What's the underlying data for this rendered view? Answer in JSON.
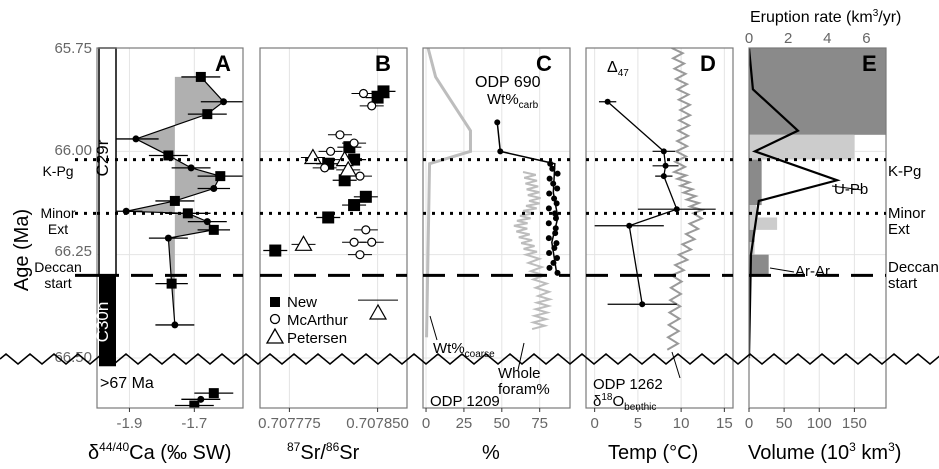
{
  "figure": {
    "y_axis_label": "Age (Ma)",
    "y_ticks": [
      "65.75",
      "66.00",
      "66.25",
      "66.50"
    ],
    "y_range": [
      65.75,
      66.5
    ],
    "events": [
      {
        "label": "K-Pg",
        "age": 66.02,
        "style": "dotted"
      },
      {
        "label": "Minor Ext",
        "age": 66.15,
        "style": "dotted"
      },
      {
        "label": "Deccan start",
        "age": 66.3,
        "style": "dashed"
      }
    ],
    "chrons": [
      {
        "label": "C29r",
        "top": 65.75,
        "bottom": 66.3,
        "fill": "#ffffff"
      },
      {
        "label": "C30n",
        "top": 66.3,
        "bottom": 66.52,
        "fill": "#000000"
      }
    ],
    "break_label": ">67 Ma",
    "colors": {
      "gray": "#b0b0b0",
      "light_gray": "#cccccc",
      "dark_gray": "#888888",
      "black": "#000000"
    }
  },
  "panels": {
    "A": {
      "letter": "A",
      "xlabel": "δ44/40Ca (‰ SW)",
      "xticks": [
        "-1.9",
        "-1.7"
      ]
    },
    "B": {
      "letter": "B",
      "xlabel": "87Sr/86Sr",
      "xticks": [
        "0.707775",
        "0.707850"
      ],
      "legend": [
        "New",
        "McArthur",
        "Petersen"
      ]
    },
    "C": {
      "letter": "C",
      "xlabel": "%",
      "xticks": [
        "0",
        "25",
        "50",
        "75"
      ],
      "site_top": "ODP 690",
      "site_bottom": "ODP 1209",
      "labels": {
        "wt_carb": "Wt%carb",
        "wt_coarse": "Wt%coarse",
        "whole_foram_1": "Whole",
        "whole_foram_2": "foram%"
      }
    },
    "D": {
      "letter": "D",
      "xlabel": "Temp (°C)",
      "xticks": [
        "0",
        "5",
        "10",
        "15"
      ],
      "labels": {
        "delta47": "Δ47",
        "site": "ODP 1262",
        "benthic": "δ18Obenthic"
      }
    },
    "E": {
      "letter": "E",
      "xlabel": "Volume (103 km3)",
      "xticks": [
        "0",
        "50",
        "100",
        "150"
      ],
      "top_label": "Eruption rate (km3/yr)",
      "top_ticks": [
        "0",
        "2",
        "4",
        "6"
      ],
      "labels": {
        "upb": "U-Pb",
        "arar": "Ar-Ar"
      }
    }
  },
  "chart_data": [
    {
      "type": "scatter",
      "panel": "A",
      "xlabel": "δ44/40Ca (‰ SW)",
      "ylabel": "Age (Ma)",
      "xlim": [
        -2.0,
        -1.55
      ],
      "series": [
        {
          "name": "",
          "points": [
            {
              "x": -1.68,
              "y": 65.82,
              "err": 0.06
            },
            {
              "x": -1.61,
              "y": 65.88,
              "err": 0.07
            },
            {
              "x": -1.66,
              "y": 65.91,
              "err": 0.06
            },
            {
              "x": -1.88,
              "y": 65.97,
              "err": 0.07
            },
            {
              "x": -1.78,
              "y": 66.01,
              "err": 0.06
            },
            {
              "x": -1.71,
              "y": 66.04,
              "err": 0.06
            },
            {
              "x": -1.62,
              "y": 66.06,
              "err": 0.07
            },
            {
              "x": -1.64,
              "y": 66.09,
              "err": 0.05
            },
            {
              "x": -1.76,
              "y": 66.12,
              "err": 0.06
            },
            {
              "x": -1.91,
              "y": 66.145,
              "err": 0.05
            },
            {
              "x": -1.72,
              "y": 66.15,
              "err": 0.07
            },
            {
              "x": -1.66,
              "y": 66.17,
              "err": 0.06
            },
            {
              "x": -1.64,
              "y": 66.19,
              "err": 0.05
            },
            {
              "x": -1.78,
              "y": 66.21,
              "err": 0.06
            },
            {
              "x": -1.77,
              "y": 66.32,
              "err": 0.05
            },
            {
              "x": -1.76,
              "y": 66.42,
              "err": 0.06
            },
            {
              "x": -1.64,
              "y": 66.585,
              "err": 0.06
            },
            {
              "x": -1.68,
              "y": 66.6,
              "err": 0.06
            },
            {
              "x": -1.7,
              "y": 66.615,
              "err": 0.06
            }
          ]
        }
      ]
    },
    {
      "type": "scatter",
      "panel": "B",
      "xlabel": "87Sr/86Sr",
      "ylabel": "Age (Ma)",
      "xlim": [
        0.70775,
        0.707875
      ],
      "series": [
        {
          "name": "New",
          "points": [
            {
              "x": 0.707855,
              "y": 65.855
            },
            {
              "x": 0.70785,
              "y": 65.87
            },
            {
              "x": 0.707826,
              "y": 65.99
            },
            {
              "x": 0.70783,
              "y": 66.02
            },
            {
              "x": 0.707808,
              "y": 66.03
            },
            {
              "x": 0.707822,
              "y": 66.07
            },
            {
              "x": 0.70784,
              "y": 66.11
            },
            {
              "x": 0.70783,
              "y": 66.13
            },
            {
              "x": 0.707808,
              "y": 66.16
            },
            {
              "x": 0.707763,
              "y": 66.24
            }
          ]
        },
        {
          "name": "McArthur",
          "points": [
            {
              "x": 0.707838,
              "y": 65.86
            },
            {
              "x": 0.707845,
              "y": 65.89
            },
            {
              "x": 0.707818,
              "y": 65.96
            },
            {
              "x": 0.70783,
              "y": 65.98
            },
            {
              "x": 0.70781,
              "y": 66.0
            },
            {
              "x": 0.707805,
              "y": 66.04
            },
            {
              "x": 0.707835,
              "y": 66.06
            },
            {
              "x": 0.70784,
              "y": 66.19
            },
            {
              "x": 0.70783,
              "y": 66.22
            },
            {
              "x": 0.707845,
              "y": 66.22
            },
            {
              "x": 0.707835,
              "y": 66.25
            }
          ]
        },
        {
          "name": "Petersen",
          "points": [
            {
              "x": 0.707795,
              "y": 66.015
            },
            {
              "x": 0.707822,
              "y": 66.02
            },
            {
              "x": 0.707825,
              "y": 66.045
            },
            {
              "x": 0.707787,
              "y": 66.225
            }
          ]
        }
      ]
    },
    {
      "type": "line",
      "panel": "C",
      "xlabel": "%",
      "ylabel": "Age (Ma)",
      "xlim": [
        -2,
        95
      ],
      "series": [
        {
          "name": "Wt%carb",
          "points": [
            {
              "x": 47,
              "y": 65.93
            },
            {
              "x": 49,
              "y": 66.0
            },
            {
              "x": 85,
              "y": 66.03
            },
            {
              "x": 84,
              "y": 66.1
            },
            {
              "x": 87,
              "y": 66.16
            },
            {
              "x": 83,
              "y": 66.22
            },
            {
              "x": 86,
              "y": 66.29
            }
          ]
        },
        {
          "name": "Wt%coarse",
          "points": [
            {
              "x": 2,
              "y": 65.75
            },
            {
              "x": 5,
              "y": 65.82
            },
            {
              "x": 14,
              "y": 65.86
            },
            {
              "x": 28,
              "y": 65.95
            },
            {
              "x": 30,
              "y": 66.0
            },
            {
              "x": 1,
              "y": 66.03
            },
            {
              "x": 1,
              "y": 66.45
            }
          ]
        },
        {
          "name": "Whole foram%",
          "points": [
            {
              "x": 68,
              "y": 66.05
            },
            {
              "x": 72,
              "y": 66.12
            },
            {
              "x": 62,
              "y": 66.18
            },
            {
              "x": 70,
              "y": 66.25
            },
            {
              "x": 78,
              "y": 66.35
            },
            {
              "x": 74,
              "y": 66.43
            }
          ]
        }
      ]
    },
    {
      "type": "line",
      "panel": "D",
      "xlabel": "Temp (°C)",
      "ylabel": "Age (Ma)",
      "xlim": [
        -1,
        16
      ],
      "series": [
        {
          "name": "Δ47",
          "points": [
            {
              "x": 1.5,
              "y": 65.88,
              "err": 1.0
            },
            {
              "x": 8.0,
              "y": 66.0,
              "err": 1.3
            },
            {
              "x": 8.2,
              "y": 66.035,
              "err": 1.5
            },
            {
              "x": 8.0,
              "y": 66.06,
              "err": 1.0
            },
            {
              "x": 9.5,
              "y": 66.14,
              "err": 4.5
            },
            {
              "x": 4.0,
              "y": 66.18,
              "err": 4.0
            },
            {
              "x": 5.5,
              "y": 66.37,
              "err": 4.0
            }
          ]
        },
        {
          "name": "δ18Obenthic",
          "points": [
            {
              "x": 9.5,
              "y": 65.75
            },
            {
              "x": 10.5,
              "y": 65.9
            },
            {
              "x": 9.8,
              "y": 66.05
            },
            {
              "x": 12.0,
              "y": 66.15
            },
            {
              "x": 9.5,
              "y": 66.3
            },
            {
              "x": 9.0,
              "y": 66.48
            }
          ]
        }
      ]
    },
    {
      "type": "bar",
      "panel": "E",
      "xlabel": "Volume (10^3 km^3)",
      "ylabel": "Age (Ma)",
      "xlim": [
        0,
        195
      ],
      "series": [
        {
          "name": "",
          "values": [
            {
              "top": 65.75,
              "bottom": 65.96,
              "value": 195
            },
            {
              "top": 65.96,
              "bottom": 66.02,
              "value": 150
            },
            {
              "top": 66.02,
              "bottom": 66.13,
              "value": 18
            },
            {
              "top": 66.13,
              "bottom": 66.16,
              "value": 10
            },
            {
              "top": 66.16,
              "bottom": 66.19,
              "value": 40
            },
            {
              "top": 66.19,
              "bottom": 66.22,
              "value": 8
            },
            {
              "top": 66.22,
              "bottom": 66.25,
              "value": 8
            },
            {
              "top": 66.25,
              "bottom": 66.3,
              "value": 28
            }
          ]
        },
        {
          "name": "Eruption rate",
          "points": [
            {
              "x": 0.2,
              "y": 65.85
            },
            {
              "x": 2.5,
              "y": 65.95
            },
            {
              "x": 0.3,
              "y": 66.0
            },
            {
              "x": 4.5,
              "y": 66.07
            },
            {
              "x": 0.5,
              "y": 66.12
            },
            {
              "x": 0.1,
              "y": 66.25
            }
          ]
        }
      ]
    }
  ]
}
